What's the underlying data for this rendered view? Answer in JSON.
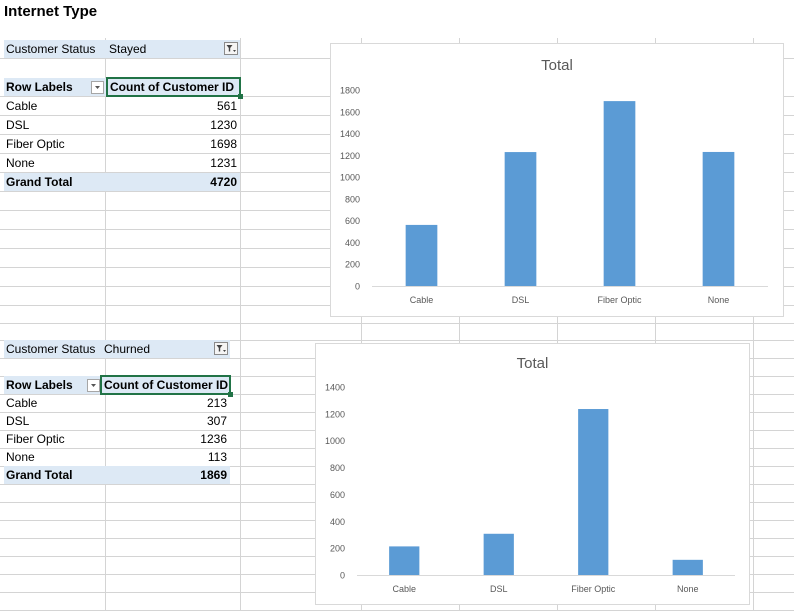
{
  "sheet_title": "Internet Type",
  "pivots": [
    {
      "filter_label": "Customer Status",
      "filter_value": "Stayed",
      "row_labels_header": "Row Labels",
      "value_header": "Count of Customer ID",
      "rows": [
        {
          "label": "Cable",
          "value": "561"
        },
        {
          "label": "DSL",
          "value": "1230"
        },
        {
          "label": "Fiber Optic",
          "value": "1698"
        },
        {
          "label": "None",
          "value": "1231"
        }
      ],
      "total_label": "Grand Total",
      "total_value": "4720"
    },
    {
      "filter_label": "Customer Status",
      "filter_value": "Churned",
      "row_labels_header": "Row Labels",
      "value_header": "Count of Customer ID",
      "rows": [
        {
          "label": "Cable",
          "value": "213"
        },
        {
          "label": "DSL",
          "value": "307"
        },
        {
          "label": "Fiber Optic",
          "value": "1236"
        },
        {
          "label": "None",
          "value": "113"
        }
      ],
      "total_label": "Grand Total",
      "total_value": "1869"
    }
  ],
  "colors": {
    "bar": "#5b9bd5",
    "band": "#dde9f5",
    "selection": "#217346"
  },
  "chart_data": [
    {
      "type": "bar",
      "title": "Total",
      "categories": [
        "Cable",
        "DSL",
        "Fiber Optic",
        "None"
      ],
      "values": [
        561,
        1230,
        1698,
        1231
      ],
      "yticks": [
        "0",
        "200",
        "400",
        "600",
        "800",
        "1000",
        "1200",
        "1400",
        "1600",
        "1800"
      ],
      "ylim": [
        0,
        1800
      ],
      "xlabel": "",
      "ylabel": "",
      "grid": false,
      "legend": "none"
    },
    {
      "type": "bar",
      "title": "Total",
      "categories": [
        "Cable",
        "DSL",
        "Fiber Optic",
        "None"
      ],
      "values": [
        213,
        307,
        1236,
        113
      ],
      "yticks": [
        "0",
        "200",
        "400",
        "600",
        "800",
        "1000",
        "1200",
        "1400"
      ],
      "ylim": [
        0,
        1400
      ],
      "xlabel": "",
      "ylabel": "",
      "grid": false,
      "legend": "none"
    }
  ]
}
